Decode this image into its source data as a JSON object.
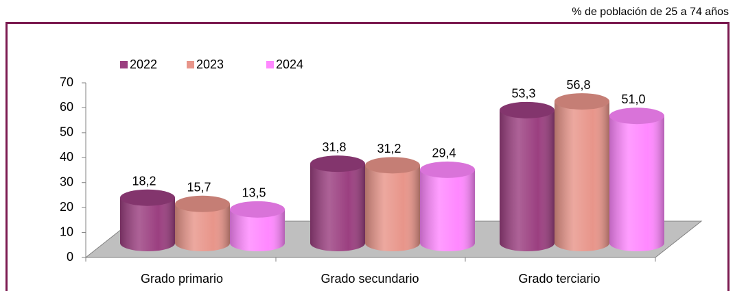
{
  "chart_data": {
    "type": "bar",
    "subtitle": "% de población de 25 a 74 años",
    "categories": [
      "Grado primario",
      "Grado secundario",
      "Grado terciario"
    ],
    "series": [
      {
        "name": "2022",
        "color": "#9b3f80",
        "values": [
          18.2,
          31.8,
          53.3
        ],
        "value_labels": [
          "18,2",
          "31,8",
          "53,3"
        ]
      },
      {
        "name": "2023",
        "color": "#e8958a",
        "values": [
          15.7,
          31.2,
          56.8
        ],
        "value_labels": [
          "15,7",
          "31,2",
          "56,8"
        ]
      },
      {
        "name": "2024",
        "color": "#ff88ff",
        "values": [
          13.5,
          29.4,
          51.0
        ],
        "value_labels": [
          "13,5",
          "29,4",
          "51,0"
        ]
      }
    ],
    "ylim": [
      0,
      70
    ],
    "yticks": [
      0,
      10,
      20,
      30,
      40,
      50,
      60,
      70
    ]
  }
}
